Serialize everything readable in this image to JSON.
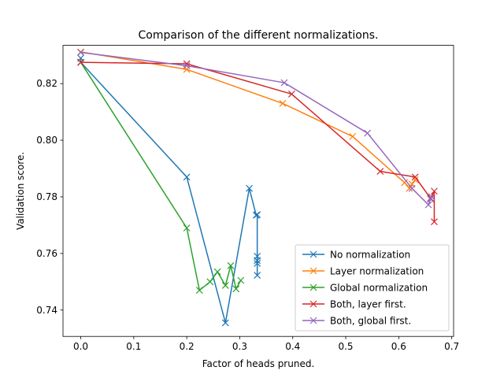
{
  "chart_data": {
    "type": "line",
    "title": "Comparison of the different normalizations.",
    "xlabel": "Factor of heads pruned.",
    "ylabel": "Validation score.",
    "xlim": [
      -0.0335,
      0.7035
    ],
    "ylim": [
      0.7307,
      0.8335
    ],
    "xticks": [
      0.0,
      0.1,
      0.2,
      0.3,
      0.4,
      0.5,
      0.6,
      0.7
    ],
    "xtick_labels": [
      "0.0",
      "0.1",
      "0.2",
      "0.3",
      "0.4",
      "0.5",
      "0.6",
      "0.7"
    ],
    "yticks": [
      0.74,
      0.76,
      0.78,
      0.8,
      0.82
    ],
    "ytick_labels": [
      "0.74",
      "0.76",
      "0.78",
      "0.80",
      "0.82"
    ],
    "grid": false,
    "legend_position": "lower right",
    "marker": "x",
    "series": [
      {
        "name": "No normalization",
        "color": "#1f77b4",
        "x": [
          0.0,
          0.0,
          0.2,
          0.273,
          0.318,
          0.331,
          0.333,
          0.333,
          0.333,
          0.333,
          0.333
        ],
        "y": [
          0.829,
          0.8275,
          0.787,
          0.7355,
          0.783,
          0.7735,
          0.7737,
          0.759,
          0.7575,
          0.7565,
          0.7523
        ]
      },
      {
        "name": "Layer normalization",
        "color": "#ff7f0e",
        "x": [
          0.0,
          0.2,
          0.381,
          0.513,
          0.611,
          0.62,
          0.625,
          0.631
        ],
        "y": [
          0.8312,
          0.825,
          0.813,
          0.8013,
          0.785,
          0.783,
          0.7845,
          0.786
        ]
      },
      {
        "name": "Global normalization",
        "color": "#2ca02c",
        "x": [
          0.0,
          0.2,
          0.224,
          0.244,
          0.258,
          0.273,
          0.283,
          0.293,
          0.302
        ],
        "y": [
          0.8275,
          0.769,
          0.747,
          0.75,
          0.7535,
          0.7487,
          0.7557,
          0.7475,
          0.7505
        ]
      },
      {
        "name": "Both, layer first.",
        "color": "#d62728",
        "x": [
          0.0,
          0.2,
          0.398,
          0.565,
          0.631,
          0.66,
          0.667,
          0.667
        ],
        "y": [
          0.8275,
          0.827,
          0.8163,
          0.789,
          0.787,
          0.7795,
          0.782,
          0.7712
        ]
      },
      {
        "name": "Both, global first.",
        "color": "#9467bd",
        "x": [
          0.0,
          0.2,
          0.384,
          0.541,
          0.625,
          0.656,
          0.66,
          0.662
        ],
        "y": [
          0.831,
          0.8263,
          0.8203,
          0.8025,
          0.783,
          0.7772,
          0.7792,
          0.78
        ]
      }
    ]
  }
}
